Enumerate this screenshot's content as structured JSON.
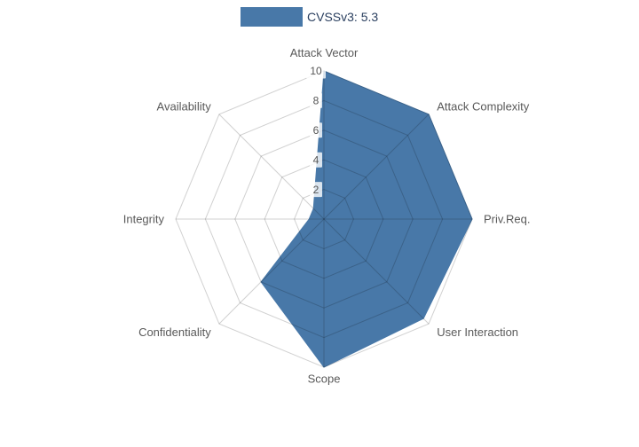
{
  "legend": {
    "label": "CVSSv3: 5.3",
    "color": "#4878a8"
  },
  "chart_data": {
    "type": "radar",
    "title": "",
    "legend_label": "CVSSv3: 5.3",
    "legend_position": "top-center",
    "categories": [
      "Attack Vector",
      "Attack Complexity",
      "Priv.Req.",
      "User Interaction",
      "Scope",
      "Confidentiality",
      "Integrity",
      "Availability"
    ],
    "series": [
      {
        "name": "CVSSv3: 5.3",
        "color": "#4878a8",
        "values": [
          10,
          10,
          10,
          9.5,
          10,
          6,
          1,
          1
        ]
      }
    ],
    "radial_ticks": [
      2,
      4,
      6,
      8,
      10
    ],
    "rlim": [
      0,
      10
    ],
    "grid": true,
    "start_axis": "top",
    "direction": "clockwise"
  }
}
